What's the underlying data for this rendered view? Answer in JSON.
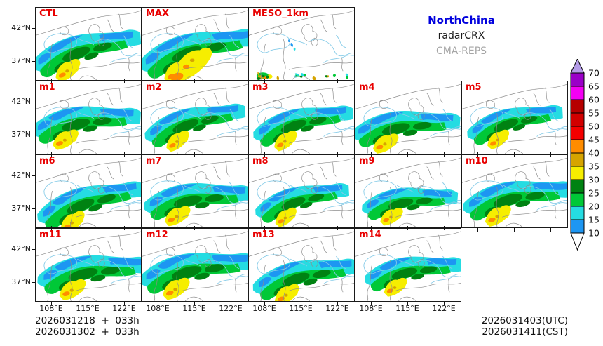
{
  "figure": {
    "header": {
      "region_label": "NorthChina",
      "product_label": "radarCRX",
      "model_label": "CMA-REPS"
    },
    "panels": [
      "CTL",
      "MAX",
      "MESO_1km",
      "m1",
      "m2",
      "m3",
      "m4",
      "m5",
      "m6",
      "m7",
      "m8",
      "m9",
      "m10",
      "m11",
      "m12",
      "m13",
      "m14"
    ],
    "axis": {
      "x_ticks": [
        "108°E",
        "115°E",
        "122°E"
      ],
      "y_ticks": [
        "42°N",
        "37°N"
      ]
    },
    "colorbar": {
      "boundary_labels": [
        "70",
        "65",
        "60",
        "55",
        "50",
        "45",
        "40",
        "35",
        "30",
        "25",
        "20",
        "15",
        "10"
      ],
      "segment_colors": [
        "#9b00c8",
        "#f400f4",
        "#b60000",
        "#d20000",
        "#f40000",
        "#ff8c00",
        "#d6a400",
        "#f6ee00",
        "#008212",
        "#00c837",
        "#25dce2",
        "#1d96f2"
      ],
      "over_arrow_color": "#b49ce8",
      "under_arrow_color": "#ffffff"
    },
    "footer": {
      "init_line_1": "2026031218  +  033h",
      "init_line_2": "2026031302  +  033h",
      "valid_line_utc": "2026031403(UTC)",
      "valid_line_cst": "2026031411(CST)"
    },
    "colors": {
      "panel_label": "#e80000",
      "region": "#0000dd",
      "product": "#1a1a1a",
      "model": "#a6a6a6",
      "map_boundary": "#8c8c8c",
      "coastline": "#85cbe8"
    }
  },
  "chart_data": {
    "type": "heatmap",
    "subtype": "multi-panel ensemble radar map grid",
    "panel_labels": [
      "CTL",
      "MAX",
      "MESO_1km",
      "m1",
      "m2",
      "m3",
      "m4",
      "m5",
      "m6",
      "m7",
      "m8",
      "m9",
      "m10",
      "m11",
      "m12",
      "m13",
      "m14"
    ],
    "grid_rows": [
      [
        "CTL",
        "MAX",
        "MESO_1km"
      ],
      [
        "m1",
        "m2",
        "m3",
        "m4",
        "m5"
      ],
      [
        "m6",
        "m7",
        "m8",
        "m9",
        "m10"
      ],
      [
        "m11",
        "m12",
        "m13",
        "m14"
      ]
    ],
    "x_tick_labels": [
      "108°E",
      "115°E",
      "122°E"
    ],
    "y_tick_labels": [
      "42°N",
      "37°N"
    ],
    "colorbar_boundaries": [
      70,
      65,
      60,
      55,
      50,
      45,
      40,
      35,
      30,
      25,
      20,
      15,
      10
    ],
    "colorbar_segment_colors_top_to_bottom": [
      "#9b00c8",
      "#f400f4",
      "#b60000",
      "#d20000",
      "#f40000",
      "#ff8c00",
      "#d6a400",
      "#f6ee00",
      "#008212",
      "#00c837",
      "#25dce2",
      "#1d96f2"
    ],
    "colorbar_over_arrow": "#b49ce8",
    "colorbar_under_arrow": "#ffffff",
    "legend_position": "right",
    "annotations": [
      "NorthChina",
      "radarCRX",
      "CMA-REPS",
      "2026031218  +  033h",
      "2026031302  +  033h",
      "2026031403(UTC)",
      "2026031411(CST)"
    ]
  }
}
